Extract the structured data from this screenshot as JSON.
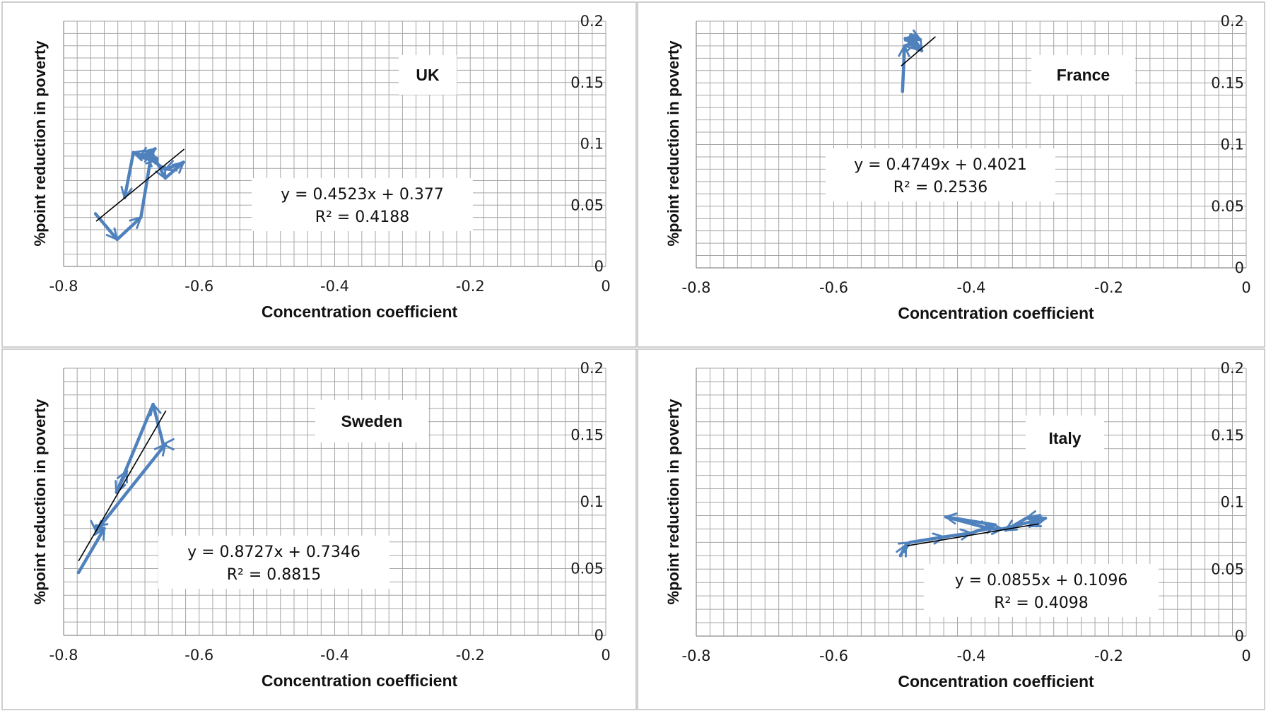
{
  "colors": {
    "series": "#4f81bd",
    "trend": "#000000",
    "grid": "#a6a6a6"
  },
  "chart_data": [
    {
      "type": "line",
      "panel": "UK",
      "xlabel": "Concentration coefficient",
      "ylabel": "%point reduction in poverty",
      "xlim": [
        -0.8,
        0
      ],
      "ylim": [
        0,
        0.2
      ],
      "x_ticks": [
        "-0.8",
        "-0.6",
        "-0.4",
        "-0.2",
        "0"
      ],
      "y_ticks": [
        "0",
        "0.05",
        "0.1",
        "0.15",
        "0.2"
      ],
      "label": "UK",
      "equation": "y = 0.4523x + 0.377",
      "r2": "R² = 0.4188",
      "trend": {
        "slope": 0.4523,
        "intercept": 0.377,
        "x_range": [
          -0.752,
          -0.622
        ]
      },
      "points": [
        [
          -0.753,
          0.043
        ],
        [
          -0.721,
          0.022
        ],
        [
          -0.686,
          0.04
        ],
        [
          -0.67,
          0.093
        ],
        [
          -0.65,
          0.072
        ],
        [
          -0.623,
          0.085
        ],
        [
          -0.65,
          0.079
        ],
        [
          -0.678,
          0.09
        ],
        [
          -0.665,
          0.096
        ],
        [
          -0.688,
          0.089
        ],
        [
          -0.662,
          0.087
        ],
        [
          -0.697,
          0.093
        ],
        [
          -0.71,
          0.056
        ]
      ]
    },
    {
      "type": "line",
      "panel": "France",
      "xlabel": "Concentration coefficient",
      "ylabel": "%point reduction in poverty",
      "xlim": [
        -0.8,
        0
      ],
      "ylim": [
        0,
        0.2
      ],
      "x_ticks": [
        "-0.8",
        "-0.6",
        "-0.4",
        "-0.2",
        "0"
      ],
      "y_ticks": [
        "0",
        "0.05",
        "0.1",
        "0.15",
        "0.2"
      ],
      "label": "France",
      "equation": "y = 0.4749x + 0.4021",
      "r2": "R² = 0.2536",
      "trend": {
        "slope": 0.4749,
        "intercept": 0.4021,
        "x_range": [
          -0.502,
          -0.452
        ]
      },
      "points": [
        [
          -0.5,
          0.143
        ],
        [
          -0.497,
          0.18
        ],
        [
          -0.48,
          0.183
        ],
        [
          -0.472,
          0.176
        ],
        [
          -0.488,
          0.189
        ],
        [
          -0.474,
          0.185
        ],
        [
          -0.496,
          0.186
        ],
        [
          -0.478,
          0.177
        ]
      ]
    },
    {
      "type": "line",
      "panel": "Sweden",
      "xlabel": "Concentration coefficient",
      "ylabel": "%point reduction in poverty",
      "xlim": [
        -0.8,
        0
      ],
      "ylim": [
        0,
        0.2
      ],
      "x_ticks": [
        "-0.8",
        "-0.6",
        "-0.4",
        "-0.2",
        "0"
      ],
      "y_ticks": [
        "0",
        "0.05",
        "0.1",
        "0.15",
        "0.2"
      ],
      "label": "Sweden",
      "equation": "y = 0.8727x + 0.7346",
      "r2": "R² = 0.8815",
      "trend": {
        "slope": 0.8727,
        "intercept": 0.7346,
        "x_range": [
          -0.778,
          -0.649
        ]
      },
      "points": [
        [
          -0.778,
          0.047
        ],
        [
          -0.74,
          0.08
        ],
        [
          -0.752,
          0.082
        ],
        [
          -0.752,
          0.078
        ],
        [
          -0.65,
          0.143
        ],
        [
          -0.653,
          0.143
        ],
        [
          -0.668,
          0.173
        ],
        [
          -0.722,
          0.107
        ],
        [
          -0.707,
          0.123
        ]
      ]
    },
    {
      "type": "line",
      "panel": "Italy",
      "xlabel": "Concentration coefficient",
      "ylabel": "%point reduction in poverty",
      "xlim": [
        -0.8,
        0
      ],
      "ylim": [
        0,
        0.2
      ],
      "x_ticks": [
        "-0.8",
        "-0.6",
        "-0.4",
        "-0.2",
        "0"
      ],
      "y_ticks": [
        "0",
        "0.05",
        "0.1",
        "0.15",
        "0.2"
      ],
      "label": "Italy",
      "equation": "y = 0.0855x + 0.1096",
      "r2": "R² = 0.4098",
      "trend": {
        "slope": 0.0855,
        "intercept": 0.1096,
        "x_range": [
          -0.493,
          -0.302
        ]
      },
      "points": [
        [
          -0.503,
          0.06
        ],
        [
          -0.495,
          0.068
        ],
        [
          -0.489,
          0.07
        ],
        [
          -0.44,
          0.074
        ],
        [
          -0.4,
          0.077
        ],
        [
          -0.365,
          0.083
        ],
        [
          -0.437,
          0.089
        ],
        [
          -0.372,
          0.08
        ],
        [
          -0.355,
          0.08
        ],
        [
          -0.292,
          0.088
        ],
        [
          -0.315,
          0.082
        ],
        [
          -0.3,
          0.09
        ],
        [
          -0.32,
          0.088
        ],
        [
          -0.35,
          0.079
        ]
      ]
    }
  ]
}
